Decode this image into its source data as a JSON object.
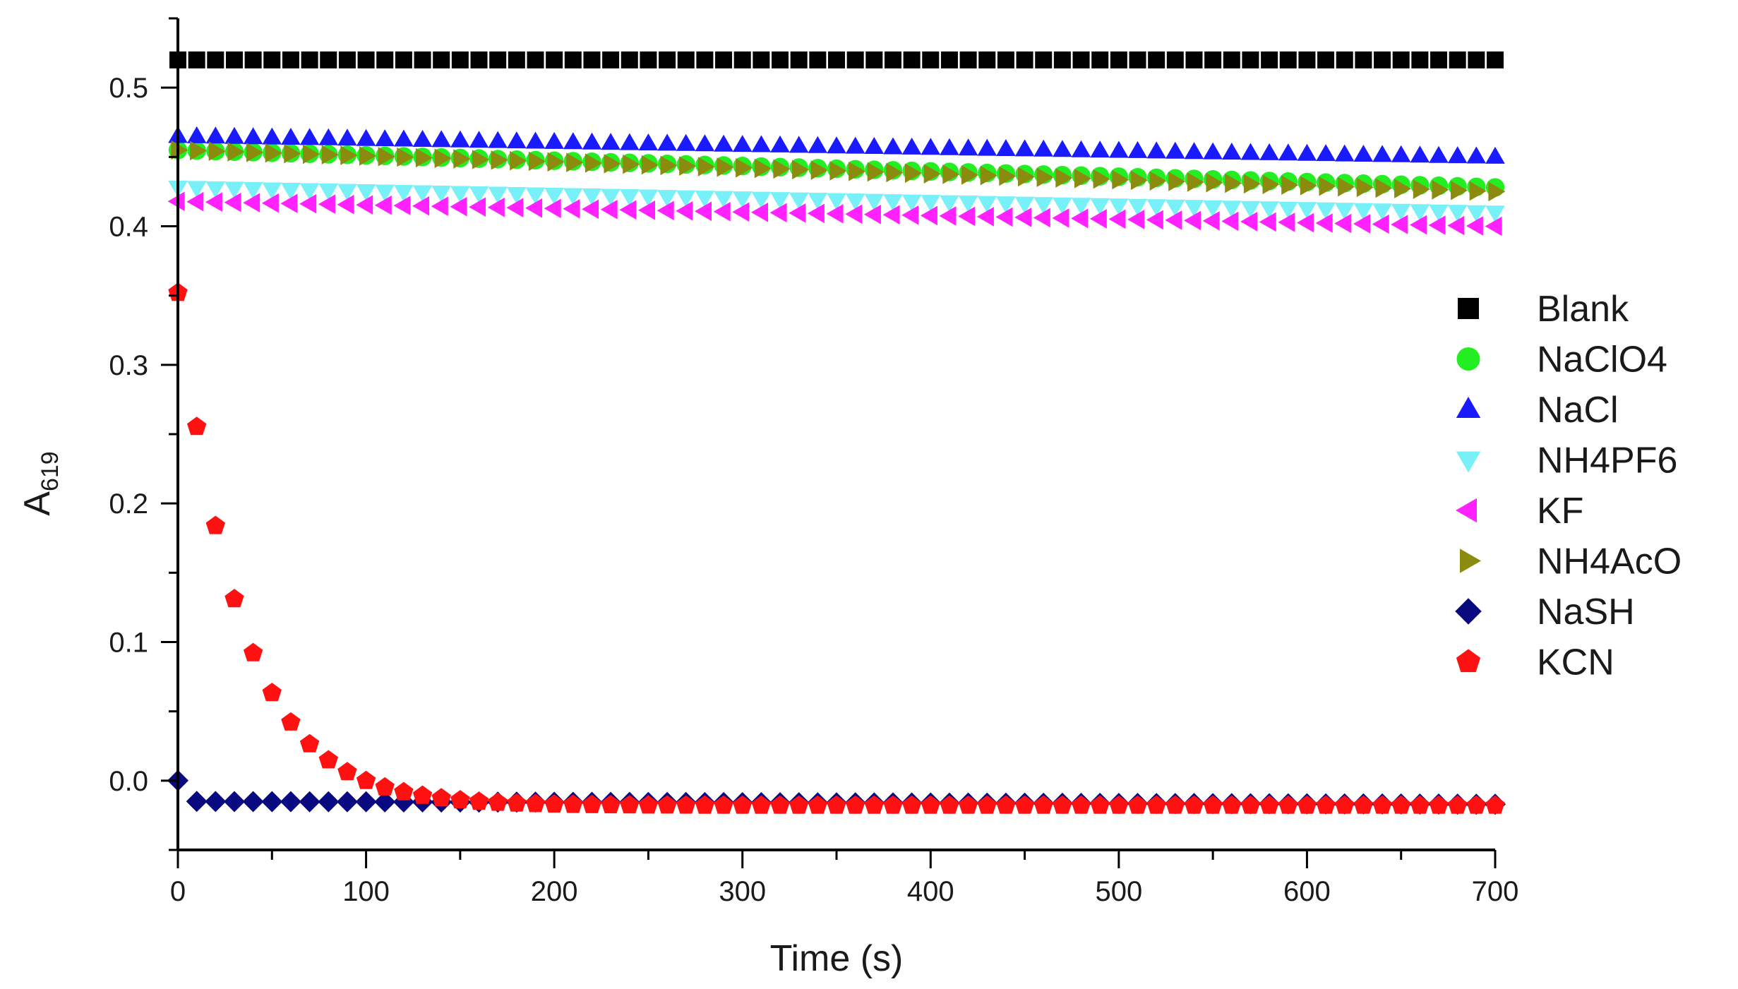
{
  "chart_data": {
    "type": "scatter",
    "xlabel": "Time (s)",
    "ylabel": "A",
    "ylabel_sub": "619",
    "xlim": [
      0,
      700
    ],
    "ylim": [
      -0.05,
      0.55
    ],
    "x_ticks": [
      0,
      100,
      200,
      300,
      400,
      500,
      600,
      700
    ],
    "x_tick_labels": [
      "0",
      "100",
      "200",
      "300",
      "400",
      "500",
      "600",
      "700"
    ],
    "y_ticks": [
      0.0,
      0.1,
      0.2,
      0.3,
      0.4,
      0.5
    ],
    "y_tick_labels": [
      "0.0",
      "0.1",
      "0.2",
      "0.3",
      "0.4",
      "0.5"
    ],
    "grid": false,
    "legend_position": "right",
    "sample_interval_s": 10,
    "series": [
      {
        "name": "Blank",
        "marker": "square",
        "color": "#000000",
        "x_start": 0,
        "x_end": 700,
        "y_start": 0.52,
        "y_end": 0.52
      },
      {
        "name": "NaClO4",
        "marker": "circle",
        "color": "#22ee22",
        "x_start": 0,
        "x_end": 700,
        "y_start": 0.455,
        "y_end": 0.428
      },
      {
        "name": "NaCl",
        "marker": "triangle-up",
        "color": "#1a1aff",
        "x_start": 0,
        "x_end": 700,
        "y_start": 0.465,
        "y_end": 0.45
      },
      {
        "name": "NH4PF6",
        "marker": "triangle-down",
        "color": "#77f0f8",
        "x_start": 0,
        "x_end": 700,
        "y_start": 0.428,
        "y_end": 0.41
      },
      {
        "name": "KF",
        "marker": "triangle-left",
        "color": "#ff22ff",
        "x_start": 0,
        "x_end": 700,
        "y_start": 0.418,
        "y_end": 0.4
      },
      {
        "name": "NH4AcO",
        "marker": "triangle-right",
        "color": "#8b8b10",
        "x_start": 0,
        "x_end": 700,
        "y_start": 0.455,
        "y_end": 0.425
      },
      {
        "name": "NaSH",
        "marker": "diamond",
        "color": "#0a0a80",
        "x_start": 0,
        "x_end": 700,
        "y_initial": 0.0,
        "y_start": -0.015,
        "y_end": -0.017
      },
      {
        "name": "KCN",
        "marker": "pentagon",
        "color": "#ff1111",
        "x_start": 0,
        "x_end": 700,
        "y0": 0.352,
        "y_inf": -0.018,
        "tau": 33
      }
    ]
  }
}
